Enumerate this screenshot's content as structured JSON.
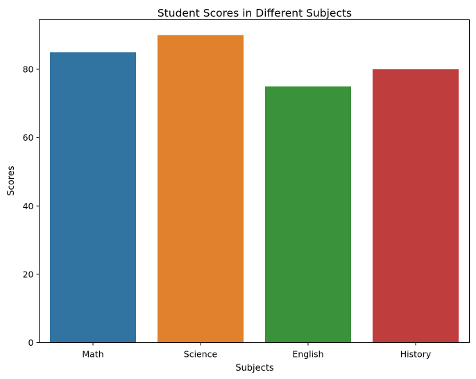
{
  "chart_data": {
    "type": "bar",
    "title": "Student Scores in Different Subjects",
    "xlabel": "Subjects",
    "ylabel": "Scores",
    "categories": [
      "Math",
      "Science",
      "English",
      "History"
    ],
    "values": [
      85,
      90,
      75,
      80
    ],
    "colors": [
      "#3274a1",
      "#e1812c",
      "#3a923a",
      "#c03d3e"
    ],
    "ylim": [
      0,
      94.5
    ],
    "yticks": [
      0,
      20,
      40,
      60,
      80
    ],
    "grid": false,
    "legend": "none"
  }
}
